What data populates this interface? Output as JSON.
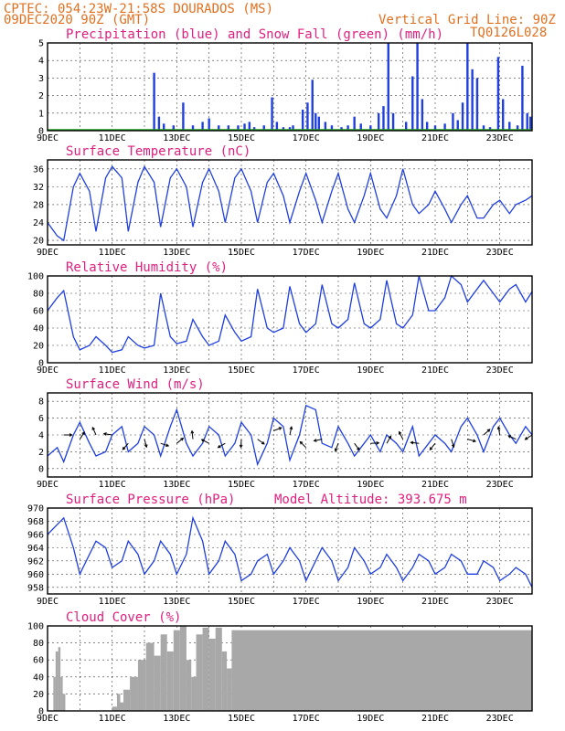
{
  "header": {
    "line1": "CPTEC:   054:23W-21:58S  DOURADOS (MS)",
    "line2": "09DEC2020 90Z (GMT)",
    "grid_note": "Vertical Grid Line: 90Z",
    "code": "TQ0126L028",
    "model_altitude": "Model Altitude: 393.675 m"
  },
  "colors": {
    "header": "#e07020",
    "title": "#e0207f",
    "line": "#1f3fe0",
    "precip": "#1f3fe0",
    "snow": "#20a020",
    "cloud": "#a8a8a8"
  },
  "x_ticks": [
    "9DEC",
    "11DEC",
    "13DEC",
    "15DEC",
    "17DEC",
    "19DEC",
    "21DEC",
    "23DEC"
  ],
  "chart_data": [
    {
      "type": "bar",
      "title": "Precipitation (blue) and Snow Fall (green) (mm/h)",
      "ylim": [
        0,
        5
      ],
      "yticks": [
        0,
        1,
        2,
        3,
        4,
        5
      ],
      "x_start_day": 9,
      "x_end_day": 24,
      "series": [
        {
          "name": "Precipitation",
          "points": [
            [
              12.3,
              3.3
            ],
            [
              12.45,
              0.8
            ],
            [
              12.6,
              0.4
            ],
            [
              12.9,
              0.3
            ],
            [
              13.2,
              1.6
            ],
            [
              13.5,
              0.3
            ],
            [
              13.8,
              0.5
            ],
            [
              14.0,
              0.7
            ],
            [
              14.3,
              0.3
            ],
            [
              14.6,
              0.3
            ],
            [
              14.9,
              0.3
            ],
            [
              15.1,
              0.4
            ],
            [
              15.25,
              0.5
            ],
            [
              15.4,
              0.2
            ],
            [
              15.7,
              0.3
            ],
            [
              15.95,
              1.9
            ],
            [
              16.1,
              0.5
            ],
            [
              16.3,
              0.2
            ],
            [
              16.5,
              0.2
            ],
            [
              16.6,
              0.3
            ],
            [
              16.9,
              1.2
            ],
            [
              17.05,
              1.6
            ],
            [
              17.2,
              2.9
            ],
            [
              17.3,
              1.0
            ],
            [
              17.4,
              0.8
            ],
            [
              17.6,
              0.5
            ],
            [
              17.8,
              0.3
            ],
            [
              18.1,
              0.2
            ],
            [
              18.3,
              0.3
            ],
            [
              18.5,
              0.8
            ],
            [
              18.7,
              0.4
            ],
            [
              19.0,
              0.3
            ],
            [
              19.25,
              1.0
            ],
            [
              19.4,
              1.4
            ],
            [
              19.55,
              5.0
            ],
            [
              19.7,
              1.0
            ],
            [
              20.1,
              0.5
            ],
            [
              20.3,
              3.1
            ],
            [
              20.45,
              5.0
            ],
            [
              20.6,
              1.8
            ],
            [
              20.75,
              0.5
            ],
            [
              21.0,
              0.3
            ],
            [
              21.3,
              0.4
            ],
            [
              21.55,
              1.0
            ],
            [
              21.7,
              0.6
            ],
            [
              21.85,
              1.6
            ],
            [
              22.0,
              5.0
            ],
            [
              22.15,
              3.5
            ],
            [
              22.3,
              3.0
            ],
            [
              22.5,
              0.3
            ],
            [
              22.7,
              0.2
            ],
            [
              22.95,
              4.2
            ],
            [
              23.1,
              1.8
            ],
            [
              23.3,
              0.5
            ],
            [
              23.55,
              0.3
            ],
            [
              23.7,
              3.7
            ],
            [
              23.85,
              1.0
            ],
            [
              23.95,
              0.8
            ]
          ]
        },
        {
          "name": "Snow Fall",
          "points": []
        }
      ]
    },
    {
      "type": "line",
      "title": "Surface Temperature (nC)",
      "ylim": [
        19,
        38
      ],
      "yticks": [
        20,
        24,
        28,
        32,
        36
      ],
      "x_start_day": 9,
      "x_end_day": 24,
      "x": [
        9.0,
        9.3,
        9.5,
        9.8,
        10.0,
        10.3,
        10.5,
        10.8,
        11.0,
        11.3,
        11.5,
        11.8,
        12.0,
        12.3,
        12.5,
        12.8,
        13.0,
        13.3,
        13.5,
        13.8,
        14.0,
        14.3,
        14.5,
        14.8,
        15.0,
        15.3,
        15.5,
        15.8,
        16.0,
        16.3,
        16.5,
        16.8,
        17.0,
        17.3,
        17.5,
        17.8,
        18.0,
        18.3,
        18.5,
        18.8,
        19.0,
        19.3,
        19.5,
        19.8,
        20.0,
        20.3,
        20.5,
        20.8,
        21.0,
        21.3,
        21.5,
        21.8,
        22.0,
        22.3,
        22.5,
        22.8,
        23.0,
        23.3,
        23.5,
        23.8,
        24.0
      ],
      "y": [
        24,
        21,
        20,
        32,
        35,
        31,
        22,
        34,
        36.5,
        34,
        22,
        33,
        36.5,
        33,
        23,
        34,
        36,
        32,
        23,
        33,
        36,
        31,
        24,
        34,
        36,
        31,
        24,
        33,
        35,
        30,
        24,
        31,
        35,
        29,
        24,
        31,
        35,
        27,
        24,
        30,
        35,
        27,
        25,
        30,
        36,
        28,
        26,
        28,
        31,
        27,
        24,
        28,
        30,
        25,
        25,
        28,
        29,
        26,
        28,
        29,
        30
      ]
    },
    {
      "type": "line",
      "title": "Relative Humidity (%)",
      "ylim": [
        0,
        100
      ],
      "yticks": [
        0,
        20,
        40,
        60,
        80,
        100
      ],
      "x_start_day": 9,
      "x_end_day": 24,
      "x": [
        9.0,
        9.3,
        9.5,
        9.8,
        10.0,
        10.3,
        10.5,
        10.8,
        11.0,
        11.3,
        11.5,
        11.8,
        12.0,
        12.3,
        12.5,
        12.8,
        13.0,
        13.3,
        13.5,
        13.8,
        14.0,
        14.3,
        14.5,
        14.8,
        15.0,
        15.3,
        15.5,
        15.8,
        16.0,
        16.3,
        16.5,
        16.8,
        17.0,
        17.3,
        17.5,
        17.8,
        18.0,
        18.3,
        18.5,
        18.8,
        19.0,
        19.3,
        19.5,
        19.8,
        20.0,
        20.3,
        20.5,
        20.8,
        21.0,
        21.3,
        21.5,
        21.8,
        22.0,
        22.3,
        22.5,
        22.8,
        23.0,
        23.3,
        23.5,
        23.8,
        24.0
      ],
      "y": [
        60,
        75,
        83,
        30,
        15,
        20,
        30,
        20,
        12,
        15,
        30,
        20,
        17,
        20,
        80,
        30,
        22,
        25,
        50,
        30,
        20,
        25,
        55,
        35,
        25,
        30,
        85,
        40,
        35,
        40,
        88,
        45,
        35,
        45,
        90,
        45,
        40,
        50,
        92,
        45,
        40,
        50,
        95,
        45,
        40,
        55,
        100,
        60,
        60,
        75,
        100,
        90,
        70,
        85,
        95,
        80,
        70,
        85,
        90,
        70,
        82
      ]
    },
    {
      "type": "line",
      "title": "Surface Wind (m/s)",
      "ylim": [
        -1,
        9
      ],
      "yticks": [
        0,
        2,
        4,
        6,
        8
      ],
      "x_start_day": 9,
      "x_end_day": 24,
      "x": [
        9.0,
        9.3,
        9.5,
        9.8,
        10.0,
        10.3,
        10.5,
        10.8,
        11.0,
        11.3,
        11.5,
        11.8,
        12.0,
        12.3,
        12.5,
        12.8,
        13.0,
        13.3,
        13.5,
        13.8,
        14.0,
        14.3,
        14.5,
        14.8,
        15.0,
        15.3,
        15.5,
        15.8,
        16.0,
        16.3,
        16.5,
        16.8,
        17.0,
        17.3,
        17.5,
        17.8,
        18.0,
        18.3,
        18.5,
        18.8,
        19.0,
        19.3,
        19.5,
        19.8,
        20.0,
        20.3,
        20.5,
        20.8,
        21.0,
        21.3,
        21.5,
        21.8,
        22.0,
        22.3,
        22.5,
        22.8,
        23.0,
        23.3,
        23.5,
        23.8,
        24.0
      ],
      "y": [
        1.5,
        2.5,
        0.8,
        4,
        5.5,
        3,
        1.5,
        2,
        4,
        5,
        2,
        3,
        5,
        4,
        1.5,
        5,
        7,
        3,
        1.5,
        3,
        5,
        4,
        1.5,
        3,
        5.5,
        4,
        0.5,
        3,
        6,
        5,
        1,
        4,
        7.5,
        7,
        3,
        2.5,
        5,
        3,
        1.5,
        3,
        4,
        2,
        4,
        3,
        2,
        5,
        1.5,
        3,
        4,
        3,
        2,
        5,
        6,
        4,
        2,
        5,
        6,
        4,
        3,
        5,
        4
      ],
      "arrows": [
        [
          9.5,
          4.0
        ],
        [
          10.0,
          3.5
        ],
        [
          10.5,
          4.0
        ],
        [
          11.0,
          4.0
        ],
        [
          11.5,
          3.0
        ],
        [
          12.0,
          3.5
        ],
        [
          12.5,
          3.0
        ],
        [
          13.0,
          3.0
        ],
        [
          13.5,
          3.5
        ],
        [
          14.0,
          3.0
        ],
        [
          14.5,
          3.0
        ],
        [
          15.0,
          3.5
        ],
        [
          15.5,
          3.5
        ],
        [
          16.0,
          4.5
        ],
        [
          16.5,
          4.0
        ],
        [
          17.0,
          2.5
        ],
        [
          17.5,
          3.5
        ],
        [
          18.0,
          3.0
        ],
        [
          18.5,
          3.0
        ],
        [
          19.0,
          3.0
        ],
        [
          19.5,
          3.0
        ],
        [
          20.0,
          3.5
        ],
        [
          20.5,
          3.0
        ],
        [
          21.0,
          3.0
        ],
        [
          21.5,
          3.5
        ],
        [
          22.0,
          3.5
        ],
        [
          22.5,
          4.0
        ],
        [
          23.0,
          4.0
        ],
        [
          23.5,
          3.5
        ],
        [
          24.0,
          4.0
        ]
      ]
    },
    {
      "type": "line",
      "title": "Surface Pressure (hPa)",
      "ylim": [
        957,
        970
      ],
      "yticks": [
        958,
        960,
        962,
        964,
        966,
        968,
        970
      ],
      "x_start_day": 9,
      "x_end_day": 24,
      "x": [
        9.0,
        9.3,
        9.5,
        9.8,
        10.0,
        10.3,
        10.5,
        10.8,
        11.0,
        11.3,
        11.5,
        11.8,
        12.0,
        12.3,
        12.5,
        12.8,
        13.0,
        13.3,
        13.5,
        13.8,
        14.0,
        14.3,
        14.5,
        14.8,
        15.0,
        15.3,
        15.5,
        15.8,
        16.0,
        16.3,
        16.5,
        16.8,
        17.0,
        17.3,
        17.5,
        17.8,
        18.0,
        18.3,
        18.5,
        18.8,
        19.0,
        19.3,
        19.5,
        19.8,
        20.0,
        20.3,
        20.5,
        20.8,
        21.0,
        21.3,
        21.5,
        21.8,
        22.0,
        22.3,
        22.5,
        22.8,
        23.0,
        23.3,
        23.5,
        23.8,
        24.0
      ],
      "y": [
        966,
        967.5,
        968.5,
        964,
        960,
        963,
        965,
        964,
        961,
        962,
        965,
        963,
        960,
        962,
        965,
        963,
        960,
        963,
        968.5,
        965,
        960,
        962,
        965,
        963,
        959,
        960,
        962,
        963,
        960,
        962,
        964,
        962,
        959,
        962,
        964,
        962,
        959,
        961,
        964,
        962,
        960,
        961,
        963,
        961,
        959,
        961,
        963,
        962,
        960,
        961,
        963,
        962,
        960,
        960,
        962,
        961,
        959,
        960,
        961,
        960,
        958
      ]
    },
    {
      "type": "bar",
      "title": "Cloud Cover (%)",
      "ylim": [
        0,
        100
      ],
      "yticks": [
        0,
        20,
        40,
        60,
        80,
        100
      ],
      "x_start_day": 9,
      "x_end_day": 24,
      "segments": [
        {
          "from": 9.0,
          "to": 9.18,
          "value": 0
        },
        {
          "from": 9.18,
          "to": 9.25,
          "value": 40
        },
        {
          "from": 9.25,
          "to": 9.33,
          "value": 70
        },
        {
          "from": 9.33,
          "to": 9.4,
          "value": 75
        },
        {
          "from": 9.4,
          "to": 9.47,
          "value": 40
        },
        {
          "from": 9.47,
          "to": 9.55,
          "value": 20
        },
        {
          "from": 9.55,
          "to": 11.0,
          "value": 0
        },
        {
          "from": 11.0,
          "to": 11.15,
          "value": 5
        },
        {
          "from": 11.15,
          "to": 11.25,
          "value": 20
        },
        {
          "from": 11.25,
          "to": 11.35,
          "value": 10
        },
        {
          "from": 11.35,
          "to": 11.55,
          "value": 25
        },
        {
          "from": 11.55,
          "to": 11.8,
          "value": 40
        },
        {
          "from": 11.8,
          "to": 12.05,
          "value": 60
        },
        {
          "from": 12.05,
          "to": 12.3,
          "value": 80
        },
        {
          "from": 12.3,
          "to": 12.5,
          "value": 65
        },
        {
          "from": 12.5,
          "to": 12.7,
          "value": 90
        },
        {
          "from": 12.7,
          "to": 12.9,
          "value": 70
        },
        {
          "from": 12.9,
          "to": 13.1,
          "value": 95
        },
        {
          "from": 13.1,
          "to": 13.3,
          "value": 100
        },
        {
          "from": 13.3,
          "to": 13.45,
          "value": 60
        },
        {
          "from": 13.45,
          "to": 13.6,
          "value": 40
        },
        {
          "from": 13.6,
          "to": 13.8,
          "value": 90
        },
        {
          "from": 13.8,
          "to": 14.0,
          "value": 98
        },
        {
          "from": 14.0,
          "to": 14.2,
          "value": 85
        },
        {
          "from": 14.2,
          "to": 14.4,
          "value": 98
        },
        {
          "from": 14.4,
          "to": 14.55,
          "value": 70
        },
        {
          "from": 14.55,
          "to": 14.7,
          "value": 50
        },
        {
          "from": 14.7,
          "to": 15.0,
          "value": 95
        },
        {
          "from": 15.0,
          "to": 24.0,
          "value": 95
        }
      ]
    }
  ],
  "panels": [
    {
      "title": "Precipitation (blue) and Snow Fall (green) (mm/h)"
    },
    {
      "title": "Surface Temperature (nC)"
    },
    {
      "title": "Relative Humidity (%)"
    },
    {
      "title": "Surface Wind (m/s)"
    },
    {
      "title": "Surface Pressure (hPa)"
    },
    {
      "title": "Cloud Cover (%)"
    }
  ]
}
